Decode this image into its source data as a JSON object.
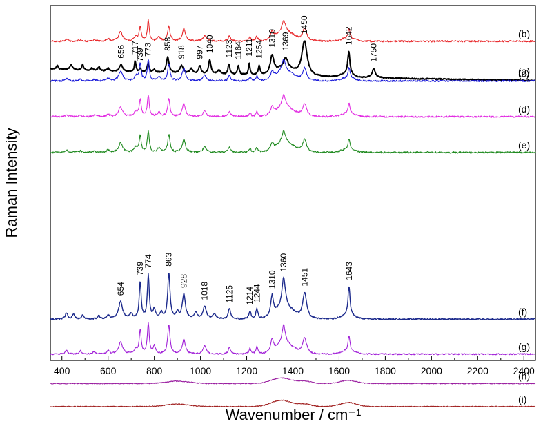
{
  "chart_data": {
    "type": "line",
    "title": "",
    "xlabel": "Wavenumber / cm⁻¹",
    "ylabel": "Raman Intensity",
    "xlim": [
      350,
      2450
    ],
    "xticks": [
      400,
      600,
      800,
      1000,
      1200,
      1400,
      1600,
      1800,
      2000,
      2200,
      2400
    ],
    "y_tick_labels": false,
    "grid": false,
    "legend": "none",
    "series": [
      {
        "label": "(a)",
        "color": "#000000",
        "stroke": 2.0,
        "baseline": 0.86,
        "end": 0.8,
        "noise": 0.8,
        "bumps": [
          [
            1300,
            1430,
            0.1
          ],
          [
            1630,
            40,
            0.03
          ]
        ],
        "peaks": [
          [
            380,
            5,
            0.05
          ],
          [
            440,
            8,
            0.06
          ],
          [
            490,
            5,
            0.07
          ],
          [
            530,
            6,
            0.03
          ],
          [
            560,
            6,
            0.05
          ],
          [
            600,
            6,
            0.04
          ],
          [
            656,
            8,
            0.09
          ],
          [
            717,
            4,
            0.14
          ],
          [
            739,
            4,
            0.05
          ],
          [
            773,
            5,
            0.12
          ],
          [
            800,
            6,
            0.04
          ],
          [
            858,
            7,
            0.2
          ],
          [
            918,
            8,
            0.1
          ],
          [
            960,
            8,
            0.06
          ],
          [
            997,
            6,
            0.1
          ],
          [
            1040,
            6,
            0.18
          ],
          [
            1080,
            8,
            0.05
          ],
          [
            1123,
            5,
            0.13
          ],
          [
            1164,
            5,
            0.11
          ],
          [
            1211,
            4,
            0.15
          ],
          [
            1254,
            5,
            0.12
          ],
          [
            1310,
            9,
            0.23
          ],
          [
            1369,
            10,
            0.12
          ],
          [
            1450,
            14,
            0.44
          ],
          [
            1642,
            6,
            0.29
          ],
          [
            1750,
            9,
            0.11
          ]
        ],
        "peak_labels": [
          "656",
          "717",
          "739",
          "773",
          "858",
          "918",
          "997",
          "1040",
          "1123",
          "1164",
          "1211",
          "1254",
          "1310",
          "1369",
          "1450",
          "1642",
          "1750"
        ]
      },
      {
        "label": "(b)",
        "color": "#e8272a",
        "stroke": 1.1,
        "baseline": 0.45,
        "noise": 1.2,
        "bumps": [
          [
            1300,
            1430,
            0.12
          ],
          [
            1640,
            40,
            0.04
          ]
        ],
        "peaks": [
          [
            420,
            6,
            0.03
          ],
          [
            480,
            6,
            0.02
          ],
          [
            540,
            6,
            0.02
          ],
          [
            600,
            7,
            0.03
          ],
          [
            654,
            10,
            0.12
          ],
          [
            720,
            8,
            0.06
          ],
          [
            739,
            5,
            0.18
          ],
          [
            774,
            5,
            0.26
          ],
          [
            820,
            8,
            0.05
          ],
          [
            863,
            6,
            0.19
          ],
          [
            928,
            8,
            0.16
          ],
          [
            1018,
            8,
            0.07
          ],
          [
            1125,
            6,
            0.07
          ],
          [
            1214,
            5,
            0.05
          ],
          [
            1244,
            5,
            0.06
          ],
          [
            1310,
            7,
            0.09
          ],
          [
            1360,
            9,
            0.14
          ],
          [
            1451,
            10,
            0.16
          ],
          [
            1643,
            5,
            0.12
          ]
        ]
      },
      {
        "label": "(c)",
        "color": "#1c1cd9",
        "stroke": 1.1,
        "baseline": 0.95,
        "noise": 1.2,
        "bumps": [
          [
            1300,
            1430,
            0.12
          ],
          [
            1640,
            40,
            0.04
          ]
        ],
        "peaks": [
          [
            420,
            6,
            0.03
          ],
          [
            480,
            6,
            0.02
          ],
          [
            540,
            6,
            0.02
          ],
          [
            600,
            7,
            0.03
          ],
          [
            654,
            10,
            0.12
          ],
          [
            720,
            8,
            0.06
          ],
          [
            739,
            5,
            0.21
          ],
          [
            774,
            5,
            0.27
          ],
          [
            820,
            8,
            0.05
          ],
          [
            863,
            6,
            0.22
          ],
          [
            928,
            8,
            0.16
          ],
          [
            1018,
            8,
            0.07
          ],
          [
            1125,
            6,
            0.07
          ],
          [
            1214,
            5,
            0.05
          ],
          [
            1244,
            5,
            0.06
          ],
          [
            1310,
            7,
            0.09
          ],
          [
            1360,
            9,
            0.15
          ],
          [
            1451,
            10,
            0.16
          ],
          [
            1643,
            5,
            0.13
          ]
        ]
      },
      {
        "label": "(d)",
        "color": "#e22ce2",
        "stroke": 1.1,
        "baseline": 1.4,
        "noise": 1.2,
        "bumps": [
          [
            1300,
            1430,
            0.12
          ],
          [
            1640,
            40,
            0.04
          ]
        ],
        "peaks": [
          [
            420,
            6,
            0.03
          ],
          [
            480,
            6,
            0.02
          ],
          [
            540,
            6,
            0.02
          ],
          [
            600,
            7,
            0.03
          ],
          [
            654,
            10,
            0.12
          ],
          [
            720,
            8,
            0.06
          ],
          [
            739,
            5,
            0.21
          ],
          [
            774,
            5,
            0.27
          ],
          [
            820,
            8,
            0.05
          ],
          [
            863,
            6,
            0.22
          ],
          [
            928,
            8,
            0.16
          ],
          [
            1018,
            8,
            0.07
          ],
          [
            1125,
            6,
            0.07
          ],
          [
            1214,
            5,
            0.05
          ],
          [
            1244,
            5,
            0.06
          ],
          [
            1310,
            7,
            0.09
          ],
          [
            1360,
            9,
            0.15
          ],
          [
            1451,
            10,
            0.16
          ],
          [
            1643,
            5,
            0.13
          ]
        ]
      },
      {
        "label": "(e)",
        "color": "#1f8a1f",
        "stroke": 1.1,
        "baseline": 1.85,
        "noise": 1.2,
        "bumps": [
          [
            1300,
            1430,
            0.12
          ],
          [
            1640,
            40,
            0.04
          ]
        ],
        "peaks": [
          [
            420,
            6,
            0.03
          ],
          [
            480,
            6,
            0.02
          ],
          [
            540,
            6,
            0.02
          ],
          [
            600,
            7,
            0.03
          ],
          [
            654,
            10,
            0.12
          ],
          [
            720,
            8,
            0.06
          ],
          [
            739,
            5,
            0.21
          ],
          [
            774,
            5,
            0.27
          ],
          [
            820,
            8,
            0.05
          ],
          [
            863,
            6,
            0.22
          ],
          [
            928,
            8,
            0.16
          ],
          [
            1018,
            8,
            0.07
          ],
          [
            1125,
            6,
            0.07
          ],
          [
            1214,
            5,
            0.05
          ],
          [
            1244,
            5,
            0.06
          ],
          [
            1310,
            7,
            0.09
          ],
          [
            1360,
            9,
            0.15
          ],
          [
            1451,
            10,
            0.16
          ],
          [
            1643,
            5,
            0.13
          ]
        ]
      },
      {
        "label": "(f)",
        "color": "#1c2a8c",
        "stroke": 1.4,
        "baseline": 3.95,
        "noise": 1.0,
        "bumps": [
          [
            1300,
            1430,
            0.14
          ],
          [
            1640,
            40,
            0.05
          ]
        ],
        "peaks": [
          [
            420,
            6,
            0.08
          ],
          [
            450,
            6,
            0.06
          ],
          [
            490,
            6,
            0.05
          ],
          [
            560,
            6,
            0.04
          ],
          [
            600,
            7,
            0.05
          ],
          [
            654,
            10,
            0.22
          ],
          [
            700,
            8,
            0.06
          ],
          [
            739,
            5,
            0.46
          ],
          [
            774,
            5,
            0.55
          ],
          [
            800,
            6,
            0.12
          ],
          [
            830,
            6,
            0.08
          ],
          [
            863,
            6,
            0.58
          ],
          [
            900,
            6,
            0.08
          ],
          [
            928,
            8,
            0.31
          ],
          [
            980,
            8,
            0.07
          ],
          [
            1018,
            8,
            0.16
          ],
          [
            1060,
            8,
            0.06
          ],
          [
            1125,
            6,
            0.13
          ],
          [
            1214,
            5,
            0.1
          ],
          [
            1244,
            5,
            0.13
          ],
          [
            1310,
            7,
            0.25
          ],
          [
            1360,
            9,
            0.38
          ],
          [
            1451,
            10,
            0.33
          ],
          [
            1643,
            5,
            0.37
          ]
        ],
        "peak_labels": [
          "654",
          "739",
          "774",
          "863",
          "928",
          "1018",
          "1125",
          "1214",
          "1244",
          "1310",
          "1360",
          "1451",
          "1643"
        ]
      },
      {
        "label": "(g)",
        "color": "#a120d8",
        "stroke": 1.1,
        "baseline": 4.39,
        "noise": 1.0,
        "bumps": [
          [
            1300,
            1430,
            0.12
          ],
          [
            1640,
            40,
            0.04
          ]
        ],
        "peaks": [
          [
            420,
            6,
            0.05
          ],
          [
            480,
            6,
            0.04
          ],
          [
            540,
            6,
            0.03
          ],
          [
            600,
            7,
            0.04
          ],
          [
            654,
            10,
            0.15
          ],
          [
            720,
            8,
            0.06
          ],
          [
            739,
            5,
            0.3
          ],
          [
            774,
            5,
            0.38
          ],
          [
            800,
            6,
            0.1
          ],
          [
            863,
            6,
            0.37
          ],
          [
            928,
            8,
            0.18
          ],
          [
            1018,
            8,
            0.1
          ],
          [
            1125,
            6,
            0.08
          ],
          [
            1214,
            5,
            0.07
          ],
          [
            1244,
            5,
            0.09
          ],
          [
            1310,
            7,
            0.15
          ],
          [
            1360,
            9,
            0.24
          ],
          [
            1451,
            10,
            0.2
          ],
          [
            1643,
            5,
            0.19
          ]
        ]
      },
      {
        "label": "(h)",
        "color": "#9a1ea0",
        "stroke": 1.1,
        "baseline": 4.76,
        "noise": 0.6,
        "bumps": [
          [
            900,
            70,
            0.03
          ],
          [
            1350,
            60,
            0.07
          ],
          [
            1450,
            40,
            0.03
          ],
          [
            1640,
            50,
            0.04
          ]
        ],
        "peaks": []
      },
      {
        "label": "(i)",
        "color": "#a01f1f",
        "stroke": 1.1,
        "baseline": 5.05,
        "noise": 0.6,
        "bumps": [
          [
            900,
            70,
            0.03
          ],
          [
            1350,
            60,
            0.08
          ],
          [
            1450,
            40,
            0.03
          ],
          [
            1640,
            50,
            0.05
          ]
        ],
        "peaks": []
      }
    ]
  }
}
